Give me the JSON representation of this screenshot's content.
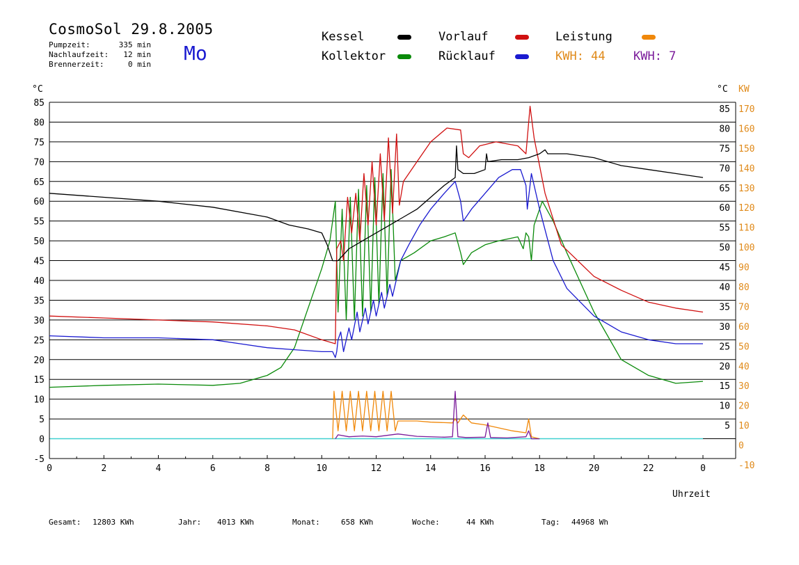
{
  "header": {
    "title": "CosmoSol 29.8.2005",
    "day": "Mo",
    "stats": [
      {
        "label": "Pumpzeit:",
        "value": "335 min"
      },
      {
        "label": "Nachlaufzeit:",
        "value": "12 min"
      },
      {
        "label": "Brennerzeit:",
        "value": "0 min"
      }
    ]
  },
  "legend": {
    "kessel": "Kessel",
    "vorlauf": "Vorlauf",
    "leistung": "Leistung",
    "kollektor": "Kollektor",
    "ruecklauf": "Rücklauf",
    "kwh1": "KWH: 44",
    "kwh2": "KWH: 7"
  },
  "colors": {
    "kessel": "#000000",
    "vorlauf": "#d01010",
    "leistung": "#f0880a",
    "kollektor": "#0a8a0a",
    "ruecklauf": "#1a1ad0",
    "kwh2": "#7a1a9a",
    "baseline": "#40d0d0",
    "axis_right": "#e08a1a"
  },
  "footer": [
    {
      "label": "Gesamt:",
      "value": "12803 KWh"
    },
    {
      "label": "Jahr:",
      "value": "4013 KWh"
    },
    {
      "label": "Monat:",
      "value": "658 KWh"
    },
    {
      "label": "Woche:",
      "value": "44 KWh"
    },
    {
      "label": "Tag:",
      "value": "44968 Wh"
    }
  ],
  "chart_data": {
    "type": "line",
    "xlabel": "Uhrzeit",
    "ylabel_left": "°C",
    "ylabel_right_c": "°C",
    "ylabel_right_kw": "KW",
    "xlim": [
      0,
      24
    ],
    "ylim": [
      -5,
      85
    ],
    "grid": true,
    "x_ticks": [
      0,
      2,
      4,
      6,
      8,
      10,
      12,
      14,
      16,
      18,
      20,
      22
    ],
    "x_end_label": "0",
    "y_ticks_left": [
      -5,
      0,
      5,
      10,
      15,
      20,
      25,
      30,
      35,
      40,
      45,
      50,
      55,
      60,
      65,
      70,
      75,
      80,
      85
    ],
    "y_ticks_right_c": [
      5,
      10,
      15,
      20,
      25,
      30,
      35,
      40,
      45,
      50,
      55,
      60,
      65,
      70,
      75,
      80,
      85
    ],
    "y_ticks_right_kw": [
      -10,
      0,
      10,
      20,
      30,
      40,
      50,
      60,
      70,
      80,
      90,
      100,
      110,
      120,
      130,
      140,
      150,
      160,
      170
    ],
    "series": [
      {
        "name": "Kessel",
        "key": "kessel",
        "points": [
          [
            0,
            62
          ],
          [
            2,
            61
          ],
          [
            4,
            60
          ],
          [
            6,
            58.5
          ],
          [
            8,
            56
          ],
          [
            8.8,
            54
          ],
          [
            9.5,
            53
          ],
          [
            10.0,
            52
          ],
          [
            10.2,
            49
          ],
          [
            10.4,
            45
          ],
          [
            10.6,
            45
          ],
          [
            11,
            48
          ],
          [
            12,
            52
          ],
          [
            12.5,
            54
          ],
          [
            13.0,
            56
          ],
          [
            13.5,
            58
          ],
          [
            14,
            61
          ],
          [
            14.5,
            64
          ],
          [
            14.9,
            66
          ],
          [
            14.95,
            74
          ],
          [
            15.0,
            68
          ],
          [
            15.2,
            67
          ],
          [
            15.6,
            67
          ],
          [
            16.0,
            68
          ],
          [
            16.05,
            72
          ],
          [
            16.1,
            70
          ],
          [
            16.6,
            70.5
          ],
          [
            17.2,
            70.5
          ],
          [
            17.6,
            71
          ],
          [
            18,
            72
          ],
          [
            18.2,
            73
          ],
          [
            18.3,
            72
          ],
          [
            19,
            72
          ],
          [
            20,
            71
          ],
          [
            21,
            69
          ],
          [
            22,
            68
          ],
          [
            23,
            67
          ],
          [
            24,
            66
          ]
        ]
      },
      {
        "name": "Vorlauf",
        "key": "vorlauf",
        "points": [
          [
            0,
            31
          ],
          [
            2,
            30.5
          ],
          [
            4,
            30
          ],
          [
            6,
            29.5
          ],
          [
            8,
            28.5
          ],
          [
            9,
            27.5
          ],
          [
            10,
            25
          ],
          [
            10.5,
            24
          ],
          [
            10.55,
            48
          ],
          [
            10.7,
            50
          ],
          [
            10.8,
            45
          ],
          [
            10.95,
            61
          ],
          [
            11.1,
            52
          ],
          [
            11.25,
            62
          ],
          [
            11.4,
            50
          ],
          [
            11.55,
            67
          ],
          [
            11.7,
            54
          ],
          [
            11.85,
            70
          ],
          [
            12.0,
            54
          ],
          [
            12.15,
            72
          ],
          [
            12.3,
            55
          ],
          [
            12.45,
            76
          ],
          [
            12.6,
            57
          ],
          [
            12.75,
            77
          ],
          [
            12.85,
            59
          ],
          [
            13,
            65
          ],
          [
            13.5,
            70
          ],
          [
            14,
            75
          ],
          [
            14.6,
            78.5
          ],
          [
            15.1,
            78
          ],
          [
            15.2,
            72
          ],
          [
            15.4,
            71
          ],
          [
            15.8,
            74
          ],
          [
            16.4,
            75
          ],
          [
            17.2,
            74
          ],
          [
            17.5,
            72
          ],
          [
            17.65,
            84
          ],
          [
            17.8,
            76
          ],
          [
            18.2,
            62
          ],
          [
            18.8,
            49
          ],
          [
            20,
            41
          ],
          [
            21,
            37.5
          ],
          [
            22,
            34.5
          ],
          [
            23,
            33
          ],
          [
            24,
            32
          ]
        ]
      },
      {
        "name": "Rücklauf",
        "key": "ruecklauf",
        "points": [
          [
            0,
            26
          ],
          [
            2,
            25.5
          ],
          [
            4,
            25.5
          ],
          [
            6,
            25
          ],
          [
            7,
            24
          ],
          [
            8,
            23
          ],
          [
            9,
            22.5
          ],
          [
            10,
            22
          ],
          [
            10.4,
            22
          ],
          [
            10.5,
            20.5
          ],
          [
            10.55,
            22
          ],
          [
            10.6,
            25
          ],
          [
            10.7,
            27
          ],
          [
            10.8,
            22
          ],
          [
            11.0,
            28
          ],
          [
            11.1,
            25
          ],
          [
            11.3,
            32
          ],
          [
            11.4,
            27
          ],
          [
            11.6,
            33
          ],
          [
            11.7,
            29
          ],
          [
            11.9,
            35
          ],
          [
            12.0,
            31
          ],
          [
            12.2,
            37
          ],
          [
            12.3,
            33
          ],
          [
            12.5,
            39
          ],
          [
            12.6,
            36
          ],
          [
            12.8,
            42
          ],
          [
            12.9,
            45
          ],
          [
            13.2,
            49
          ],
          [
            13.6,
            54
          ],
          [
            14,
            58
          ],
          [
            14.5,
            62
          ],
          [
            14.9,
            65
          ],
          [
            15.1,
            60
          ],
          [
            15.2,
            55
          ],
          [
            15.5,
            58
          ],
          [
            16,
            62
          ],
          [
            16.5,
            66
          ],
          [
            17,
            68
          ],
          [
            17.3,
            68
          ],
          [
            17.5,
            64
          ],
          [
            17.55,
            58
          ],
          [
            17.7,
            67
          ],
          [
            18,
            58
          ],
          [
            18.5,
            45
          ],
          [
            19,
            38
          ],
          [
            20,
            31
          ],
          [
            21,
            27
          ],
          [
            22,
            25
          ],
          [
            23,
            24
          ],
          [
            24,
            24
          ]
        ]
      },
      {
        "name": "Kollektor",
        "key": "kollektor",
        "points": [
          [
            0,
            13
          ],
          [
            2,
            13.5
          ],
          [
            4,
            13.8
          ],
          [
            6,
            13.5
          ],
          [
            7,
            14
          ],
          [
            8,
            16
          ],
          [
            8.5,
            18
          ],
          [
            9,
            23
          ],
          [
            9.5,
            33
          ],
          [
            10,
            43
          ],
          [
            10.3,
            50
          ],
          [
            10.4,
            55
          ],
          [
            10.5,
            60
          ],
          [
            10.6,
            32
          ],
          [
            10.75,
            58
          ],
          [
            10.9,
            30
          ],
          [
            11.05,
            61
          ],
          [
            11.2,
            30
          ],
          [
            11.35,
            63
          ],
          [
            11.5,
            31
          ],
          [
            11.65,
            64
          ],
          [
            11.8,
            32
          ],
          [
            11.95,
            66
          ],
          [
            12.1,
            34
          ],
          [
            12.25,
            67
          ],
          [
            12.4,
            36
          ],
          [
            12.55,
            68
          ],
          [
            12.7,
            40
          ],
          [
            12.9,
            45
          ],
          [
            13.4,
            47
          ],
          [
            14,
            50
          ],
          [
            14.5,
            51
          ],
          [
            14.9,
            52
          ],
          [
            15.1,
            47
          ],
          [
            15.2,
            44
          ],
          [
            15.5,
            47
          ],
          [
            16,
            49
          ],
          [
            16.5,
            50
          ],
          [
            17.2,
            51
          ],
          [
            17.4,
            48
          ],
          [
            17.5,
            52
          ],
          [
            17.6,
            51
          ],
          [
            17.7,
            45
          ],
          [
            17.8,
            54
          ],
          [
            18.1,
            60
          ],
          [
            18.5,
            55
          ],
          [
            19,
            47
          ],
          [
            20,
            32
          ],
          [
            21,
            20
          ],
          [
            22,
            16
          ],
          [
            23,
            14
          ],
          [
            24,
            14.5
          ]
        ]
      },
      {
        "name": "Leistung",
        "key": "leistung",
        "points": [
          [
            10.4,
            0
          ],
          [
            10.45,
            12
          ],
          [
            10.6,
            2
          ],
          [
            10.75,
            12
          ],
          [
            10.9,
            2
          ],
          [
            11.05,
            12
          ],
          [
            11.2,
            2
          ],
          [
            11.35,
            12
          ],
          [
            11.5,
            2
          ],
          [
            11.65,
            12
          ],
          [
            11.8,
            2
          ],
          [
            11.95,
            12
          ],
          [
            12.1,
            2
          ],
          [
            12.25,
            12
          ],
          [
            12.4,
            2
          ],
          [
            12.55,
            12
          ],
          [
            12.7,
            2
          ],
          [
            12.8,
            4.5
          ],
          [
            13.5,
            4.5
          ],
          [
            14,
            4.2
          ],
          [
            14.8,
            4
          ],
          [
            14.9,
            5
          ],
          [
            15.0,
            4
          ],
          [
            15.2,
            6
          ],
          [
            15.5,
            4
          ],
          [
            16,
            3.5
          ],
          [
            17,
            2
          ],
          [
            17.5,
            1.5
          ],
          [
            17.6,
            5
          ],
          [
            17.7,
            0.5
          ],
          [
            18,
            0
          ]
        ]
      },
      {
        "name": "KWH 7",
        "key": "kwh2",
        "points": [
          [
            10.5,
            0
          ],
          [
            10.6,
            1
          ],
          [
            11,
            0.5
          ],
          [
            11.5,
            0.7
          ],
          [
            12,
            0.5
          ],
          [
            12.8,
            1.2
          ],
          [
            13.5,
            0.6
          ],
          [
            14.5,
            0.4
          ],
          [
            14.8,
            0.5
          ],
          [
            14.9,
            12
          ],
          [
            15.0,
            0.5
          ],
          [
            15.3,
            0.3
          ],
          [
            16,
            0.4
          ],
          [
            16.1,
            4
          ],
          [
            16.2,
            0.3
          ],
          [
            16.8,
            0.2
          ],
          [
            17.5,
            0.5
          ],
          [
            17.6,
            2
          ],
          [
            17.7,
            0
          ],
          [
            18,
            0
          ]
        ]
      }
    ]
  }
}
